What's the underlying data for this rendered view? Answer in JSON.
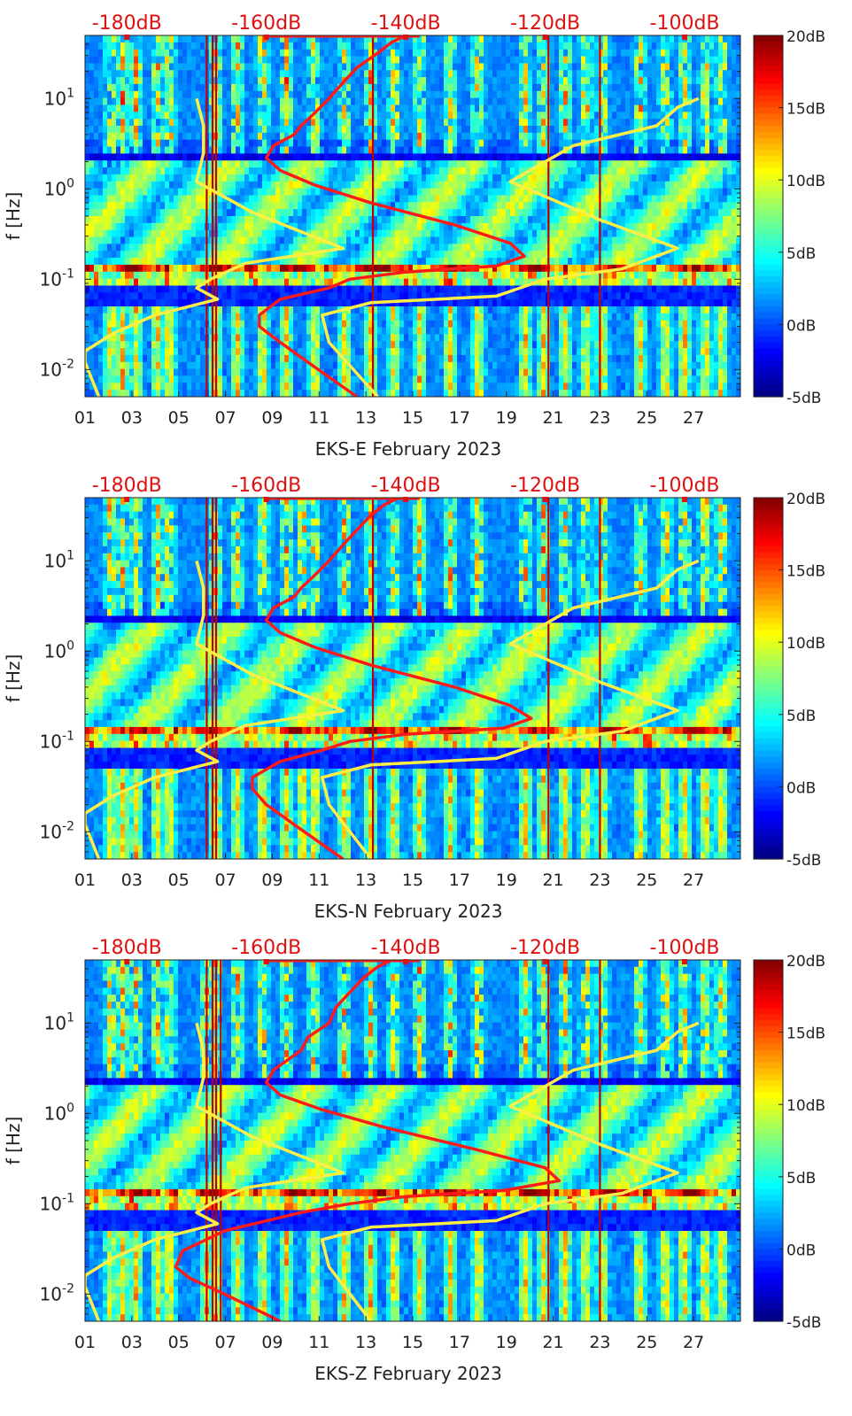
{
  "figure": {
    "colorbar": {
      "ticks": [
        "20dB",
        "15dB",
        "10dB",
        "5dB",
        "0dB",
        "-5dB"
      ],
      "range": [
        -5,
        20
      ],
      "colormap": "jet"
    },
    "colors": {
      "model_curve": "#ff1a1a",
      "reference_curve": "#ffee44",
      "top_axis_text": "#e01010"
    }
  },
  "chart_data": [
    {
      "type": "heatmap",
      "title": "",
      "xlabel": "EKS-E February 2023",
      "ylabel": "f [Hz]",
      "x_tick_labels": [
        "01",
        "03",
        "05",
        "07",
        "09",
        "11",
        "13",
        "15",
        "17",
        "19",
        "21",
        "23",
        "25",
        "27"
      ],
      "x_ticks_day": [
        1,
        3,
        5,
        7,
        9,
        11,
        13,
        15,
        17,
        19,
        21,
        23,
        25,
        27
      ],
      "xlim_day": [
        1,
        29
      ],
      "y_tick_labels": [
        "10^1",
        "10^0",
        "10^-1",
        "10^-2"
      ],
      "y_ticks_hz": [
        10,
        1,
        0.1,
        0.01
      ],
      "yscale": "log",
      "ylim_hz": [
        0.005,
        50
      ],
      "top_axis_labels": [
        "-180dB",
        "-160dB",
        "-140dB",
        "-120dB",
        "-100dB"
      ],
      "top_axis_db": [
        -180,
        -160,
        -140,
        -120,
        -100
      ],
      "top_axis_range_db": [
        -186,
        -92
      ],
      "bright_days": [
        2.1,
        2.6,
        3.2,
        4.1,
        4.6,
        6.6,
        7.5,
        8.6,
        9.6,
        10.8,
        12.1,
        13.2,
        14.2,
        15.3,
        16.6,
        17.8,
        19.8,
        20.6,
        21.5,
        22.4,
        23.1,
        24.7,
        25.8,
        26.6,
        27.5,
        28.2
      ],
      "red_lines_days": [
        6.2,
        6.45,
        6.6,
        13.3,
        20.8,
        23.0
      ],
      "red_curve": [
        [
          -147,
          0.005
        ],
        [
          -154,
          0.012
        ],
        [
          -158,
          0.02
        ],
        [
          -161,
          0.03
        ],
        [
          -161,
          0.04
        ],
        [
          -158,
          0.06
        ],
        [
          -151,
          0.08
        ],
        [
          -148,
          0.1
        ],
        [
          -140,
          0.12
        ],
        [
          -127,
          0.14
        ],
        [
          -123,
          0.18
        ],
        [
          -125,
          0.25
        ],
        [
          -133,
          0.4
        ],
        [
          -145,
          0.7
        ],
        [
          -153,
          1.1
        ],
        [
          -158,
          1.6
        ],
        [
          -160,
          2.2
        ],
        [
          -159,
          3
        ],
        [
          -156,
          4
        ],
        [
          -155,
          5
        ],
        [
          -153,
          7
        ],
        [
          -151,
          10
        ],
        [
          -149,
          15
        ],
        [
          -147,
          22
        ],
        [
          -144,
          32
        ],
        [
          -142,
          42
        ],
        [
          -140,
          50
        ]
      ],
      "yellow_left": [
        [
          -184,
          0.005
        ],
        [
          -186,
          0.012
        ],
        [
          -186,
          0.016
        ],
        [
          -182,
          0.025
        ],
        [
          -176,
          0.04
        ],
        [
          -167,
          0.06
        ],
        [
          -170,
          0.08
        ],
        [
          -168,
          0.1
        ],
        [
          -163,
          0.15
        ],
        [
          -149,
          0.22
        ],
        [
          -162,
          0.55
        ],
        [
          -170,
          1.2
        ],
        [
          -169,
          2.5
        ],
        [
          -169,
          5
        ],
        [
          -170,
          10
        ]
      ],
      "yellow_right": [
        [
          -144,
          0.005
        ],
        [
          -151,
          0.02
        ],
        [
          -152,
          0.04
        ],
        [
          -145,
          0.055
        ],
        [
          -127,
          0.065
        ],
        [
          -120,
          0.1
        ],
        [
          -109,
          0.13
        ],
        [
          -101,
          0.22
        ],
        [
          -112,
          0.45
        ],
        [
          -125,
          1.2
        ],
        [
          -116,
          3
        ],
        [
          -104,
          5
        ],
        [
          -101,
          8
        ],
        [
          -98,
          10
        ]
      ]
    },
    {
      "type": "heatmap",
      "title": "",
      "xlabel": "EKS-N February 2023",
      "ylabel": "f [Hz]",
      "x_tick_labels": [
        "01",
        "03",
        "05",
        "07",
        "09",
        "11",
        "13",
        "15",
        "17",
        "19",
        "21",
        "23",
        "25",
        "27"
      ],
      "x_ticks_day": [
        1,
        3,
        5,
        7,
        9,
        11,
        13,
        15,
        17,
        19,
        21,
        23,
        25,
        27
      ],
      "xlim_day": [
        1,
        29
      ],
      "y_tick_labels": [
        "10^1",
        "10^0",
        "10^-1",
        "10^-2"
      ],
      "y_ticks_hz": [
        10,
        1,
        0.1,
        0.01
      ],
      "yscale": "log",
      "ylim_hz": [
        0.005,
        50
      ],
      "top_axis_labels": [
        "-180dB",
        "-160dB",
        "-140dB",
        "-120dB",
        "-100dB"
      ],
      "top_axis_db": [
        -180,
        -160,
        -140,
        -120,
        -100
      ],
      "top_axis_range_db": [
        -186,
        -92
      ],
      "bright_days": [
        2.1,
        2.6,
        3.2,
        4.1,
        4.6,
        6.6,
        7.5,
        8.6,
        9.6,
        10.3,
        10.8,
        12.1,
        13.2,
        14.2,
        15.3,
        16.6,
        17.8,
        19.8,
        20.6,
        21.5,
        22.4,
        23.1,
        24.7,
        25.8,
        26.6,
        27.5,
        28.2
      ],
      "red_lines_days": [
        6.2,
        6.45,
        6.6,
        13.3,
        20.8,
        23.0
      ],
      "red_curve": [
        [
          -149,
          0.005
        ],
        [
          -156,
          0.012
        ],
        [
          -160,
          0.02
        ],
        [
          -162,
          0.03
        ],
        [
          -162,
          0.04
        ],
        [
          -158,
          0.06
        ],
        [
          -152,
          0.08
        ],
        [
          -148,
          0.1
        ],
        [
          -140,
          0.12
        ],
        [
          -126,
          0.14
        ],
        [
          -122,
          0.18
        ],
        [
          -125,
          0.25
        ],
        [
          -133,
          0.4
        ],
        [
          -145,
          0.7
        ],
        [
          -153,
          1.1
        ],
        [
          -158,
          1.6
        ],
        [
          -160,
          2.2
        ],
        [
          -159,
          3
        ],
        [
          -156,
          4
        ],
        [
          -155,
          5
        ],
        [
          -153,
          7
        ],
        [
          -151,
          10
        ],
        [
          -149,
          15
        ],
        [
          -147,
          22
        ],
        [
          -145,
          32
        ],
        [
          -143,
          42
        ],
        [
          -141,
          50
        ]
      ],
      "yellow_left": [
        [
          -184,
          0.005
        ],
        [
          -186,
          0.012
        ],
        [
          -186,
          0.016
        ],
        [
          -182,
          0.025
        ],
        [
          -176,
          0.04
        ],
        [
          -167,
          0.06
        ],
        [
          -170,
          0.08
        ],
        [
          -168,
          0.1
        ],
        [
          -163,
          0.15
        ],
        [
          -149,
          0.22
        ],
        [
          -162,
          0.55
        ],
        [
          -170,
          1.2
        ],
        [
          -169,
          2.5
        ],
        [
          -169,
          5
        ],
        [
          -170,
          10
        ]
      ],
      "yellow_right": [
        [
          -145,
          0.005
        ],
        [
          -151,
          0.02
        ],
        [
          -152,
          0.04
        ],
        [
          -145,
          0.055
        ],
        [
          -127,
          0.065
        ],
        [
          -120,
          0.1
        ],
        [
          -109,
          0.13
        ],
        [
          -101,
          0.22
        ],
        [
          -112,
          0.45
        ],
        [
          -125,
          1.2
        ],
        [
          -116,
          3
        ],
        [
          -104,
          5
        ],
        [
          -101,
          8
        ],
        [
          -98,
          10
        ]
      ]
    },
    {
      "type": "heatmap",
      "title": "",
      "xlabel": "EKS-Z February 2023",
      "ylabel": "f [Hz]",
      "x_tick_labels": [
        "01",
        "03",
        "05",
        "07",
        "09",
        "11",
        "13",
        "15",
        "17",
        "19",
        "21",
        "23",
        "25",
        "27"
      ],
      "x_ticks_day": [
        1,
        3,
        5,
        7,
        9,
        11,
        13,
        15,
        17,
        19,
        21,
        23,
        25,
        27
      ],
      "xlim_day": [
        1,
        29
      ],
      "y_tick_labels": [
        "10^1",
        "10^0",
        "10^-1",
        "10^-2"
      ],
      "y_ticks_hz": [
        10,
        1,
        0.1,
        0.01
      ],
      "yscale": "log",
      "ylim_hz": [
        0.005,
        50
      ],
      "top_axis_labels": [
        "-180dB",
        "-160dB",
        "-140dB",
        "-120dB",
        "-100dB"
      ],
      "top_axis_db": [
        -180,
        -160,
        -140,
        -120,
        -100
      ],
      "top_axis_range_db": [
        -186,
        -92
      ],
      "bright_days": [
        2.1,
        2.6,
        3.2,
        4.1,
        4.6,
        6.2,
        6.6,
        7.5,
        8.6,
        9.6,
        10.8,
        12.1,
        13.2,
        14.2,
        15.3,
        16.6,
        17.8,
        19.8,
        20.6,
        21.5,
        22.4,
        23.1,
        24.7,
        25.8,
        26.6,
        27.5,
        28.2
      ],
      "red_lines_days": [
        6.2,
        6.45,
        6.6,
        6.8,
        20.8,
        23.0
      ],
      "red_curve": [
        [
          -158,
          0.005
        ],
        [
          -166,
          0.01
        ],
        [
          -171,
          0.015
        ],
        [
          -173,
          0.02
        ],
        [
          -172,
          0.03
        ],
        [
          -166,
          0.05
        ],
        [
          -155,
          0.08
        ],
        [
          -148,
          0.1
        ],
        [
          -140,
          0.12
        ],
        [
          -126,
          0.14
        ],
        [
          -118,
          0.18
        ],
        [
          -120,
          0.25
        ],
        [
          -130,
          0.4
        ],
        [
          -143,
          0.7
        ],
        [
          -152,
          1.1
        ],
        [
          -158,
          1.6
        ],
        [
          -160,
          2.2
        ],
        [
          -159,
          3
        ],
        [
          -155,
          5
        ],
        [
          -154,
          7
        ],
        [
          -151,
          10
        ],
        [
          -150,
          15
        ],
        [
          -148,
          22
        ],
        [
          -146,
          32
        ],
        [
          -144,
          42
        ],
        [
          -142,
          50
        ]
      ],
      "yellow_left": [
        [
          -184,
          0.005
        ],
        [
          -186,
          0.012
        ],
        [
          -186,
          0.016
        ],
        [
          -182,
          0.025
        ],
        [
          -176,
          0.04
        ],
        [
          -167,
          0.06
        ],
        [
          -170,
          0.08
        ],
        [
          -168,
          0.1
        ],
        [
          -163,
          0.15
        ],
        [
          -149,
          0.22
        ],
        [
          -162,
          0.55
        ],
        [
          -170,
          1.2
        ],
        [
          -169,
          2.5
        ],
        [
          -169,
          5
        ],
        [
          -170,
          10
        ]
      ],
      "yellow_right": [
        [
          -145,
          0.005
        ],
        [
          -151,
          0.02
        ],
        [
          -152,
          0.04
        ],
        [
          -145,
          0.055
        ],
        [
          -127,
          0.065
        ],
        [
          -120,
          0.1
        ],
        [
          -109,
          0.13
        ],
        [
          -101,
          0.22
        ],
        [
          -112,
          0.45
        ],
        [
          -125,
          1.2
        ],
        [
          -116,
          3
        ],
        [
          -104,
          5
        ],
        [
          -101,
          8
        ],
        [
          -98,
          10
        ]
      ]
    }
  ]
}
